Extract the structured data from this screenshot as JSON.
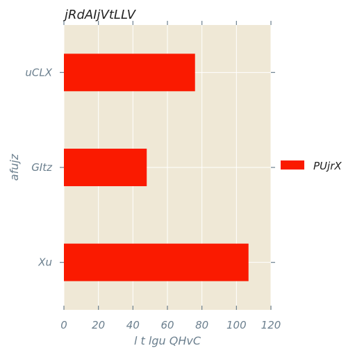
{
  "chart_data": {
    "type": "bar",
    "orientation": "horizontal",
    "title": "jRdAIjVtLLV",
    "xlabel": "l t lgu QHvC",
    "ylabel": "afujz",
    "categories": [
      "uCLX",
      "GItz",
      "Xu"
    ],
    "series": [
      {
        "name": "PUjrX",
        "values": [
          76,
          48,
          107
        ],
        "color": "#fa1a00"
      }
    ],
    "xlim": [
      0,
      120
    ],
    "xticks": [
      0,
      20,
      40,
      60,
      80,
      100,
      120
    ],
    "grid": true,
    "legend_position": "right",
    "colors": {
      "plot_background": "#efe8d6",
      "grid": "#ffffff",
      "text": "#6b7f8e",
      "title": "#222222",
      "bar": "#fa1a00"
    }
  }
}
